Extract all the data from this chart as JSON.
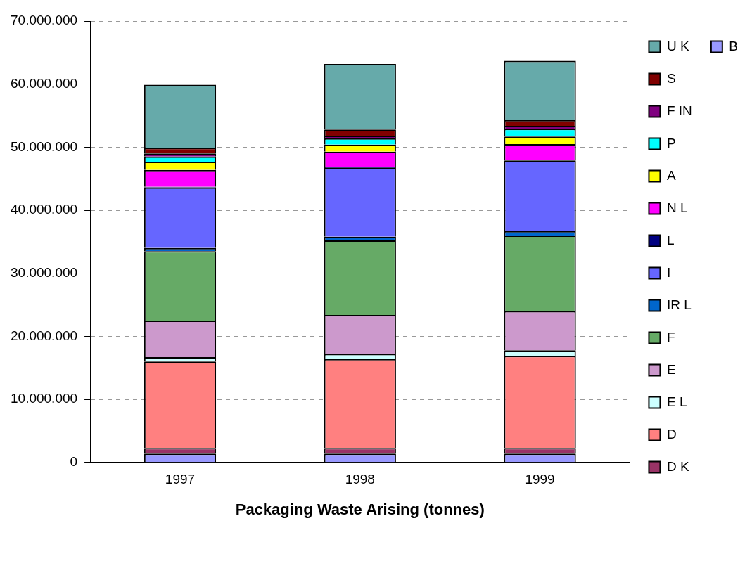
{
  "chart_data": {
    "type": "bar",
    "xlabel": "Packaging Waste Arising (tonnes)",
    "categories": [
      "1997",
      "1998",
      "1999"
    ],
    "stacked": true,
    "series": [
      {
        "name": "B",
        "color": "#9999ff",
        "values": [
          1400000,
          1400000,
          1400000
        ]
      },
      {
        "name": "D K",
        "color": "#993366",
        "values": [
          900000,
          900000,
          900000
        ]
      },
      {
        "name": "D",
        "color": "#ff8080",
        "values": [
          13700000,
          14100000,
          14600000
        ]
      },
      {
        "name": "E L",
        "color": "#ccffff",
        "values": [
          700000,
          800000,
          900000
        ]
      },
      {
        "name": "E",
        "color": "#cc99cc",
        "values": [
          5800000,
          6200000,
          6200000
        ]
      },
      {
        "name": "F",
        "color": "#66aa66",
        "values": [
          11000000,
          11800000,
          12000000
        ]
      },
      {
        "name": "IR L",
        "color": "#0066cc",
        "values": [
          500000,
          600000,
          700000
        ]
      },
      {
        "name": "I",
        "color": "#6666ff",
        "values": [
          9600000,
          10900000,
          11200000
        ]
      },
      {
        "name": "L",
        "color": "#000080",
        "values": [
          100000,
          100000,
          100000
        ]
      },
      {
        "name": "N L",
        "color": "#ff00ff",
        "values": [
          2700000,
          2500000,
          2500000
        ]
      },
      {
        "name": "A",
        "color": "#ffff00",
        "values": [
          1300000,
          1100000,
          1200000
        ]
      },
      {
        "name": "P",
        "color": "#00ffff",
        "values": [
          800000,
          1000000,
          1200000
        ]
      },
      {
        "name": "F IN",
        "color": "#800080",
        "values": [
          500000,
          400000,
          500000
        ]
      },
      {
        "name": "S",
        "color": "#800000",
        "values": [
          900000,
          1000000,
          900000
        ]
      },
      {
        "name": "U K",
        "color": "#66aaaa",
        "values": [
          10000000,
          10400000,
          9400000
        ]
      }
    ],
    "ylim": [
      0,
      70000000
    ],
    "yticks": [
      0,
      {
        "value": 10000000,
        "label": "10.000.000"
      },
      {
        "value": 20000000,
        "label": "20.000.000"
      },
      {
        "value": 30000000,
        "label": "30.000.000"
      },
      {
        "value": 40000000,
        "label": "40.000.000"
      },
      {
        "value": 50000000,
        "label": "50.000.000"
      },
      {
        "value": 60000000,
        "label": "60.000.000"
      },
      {
        "value": 70000000,
        "label": "70.000.000"
      }
    ],
    "grid": "y",
    "legend": "right"
  }
}
